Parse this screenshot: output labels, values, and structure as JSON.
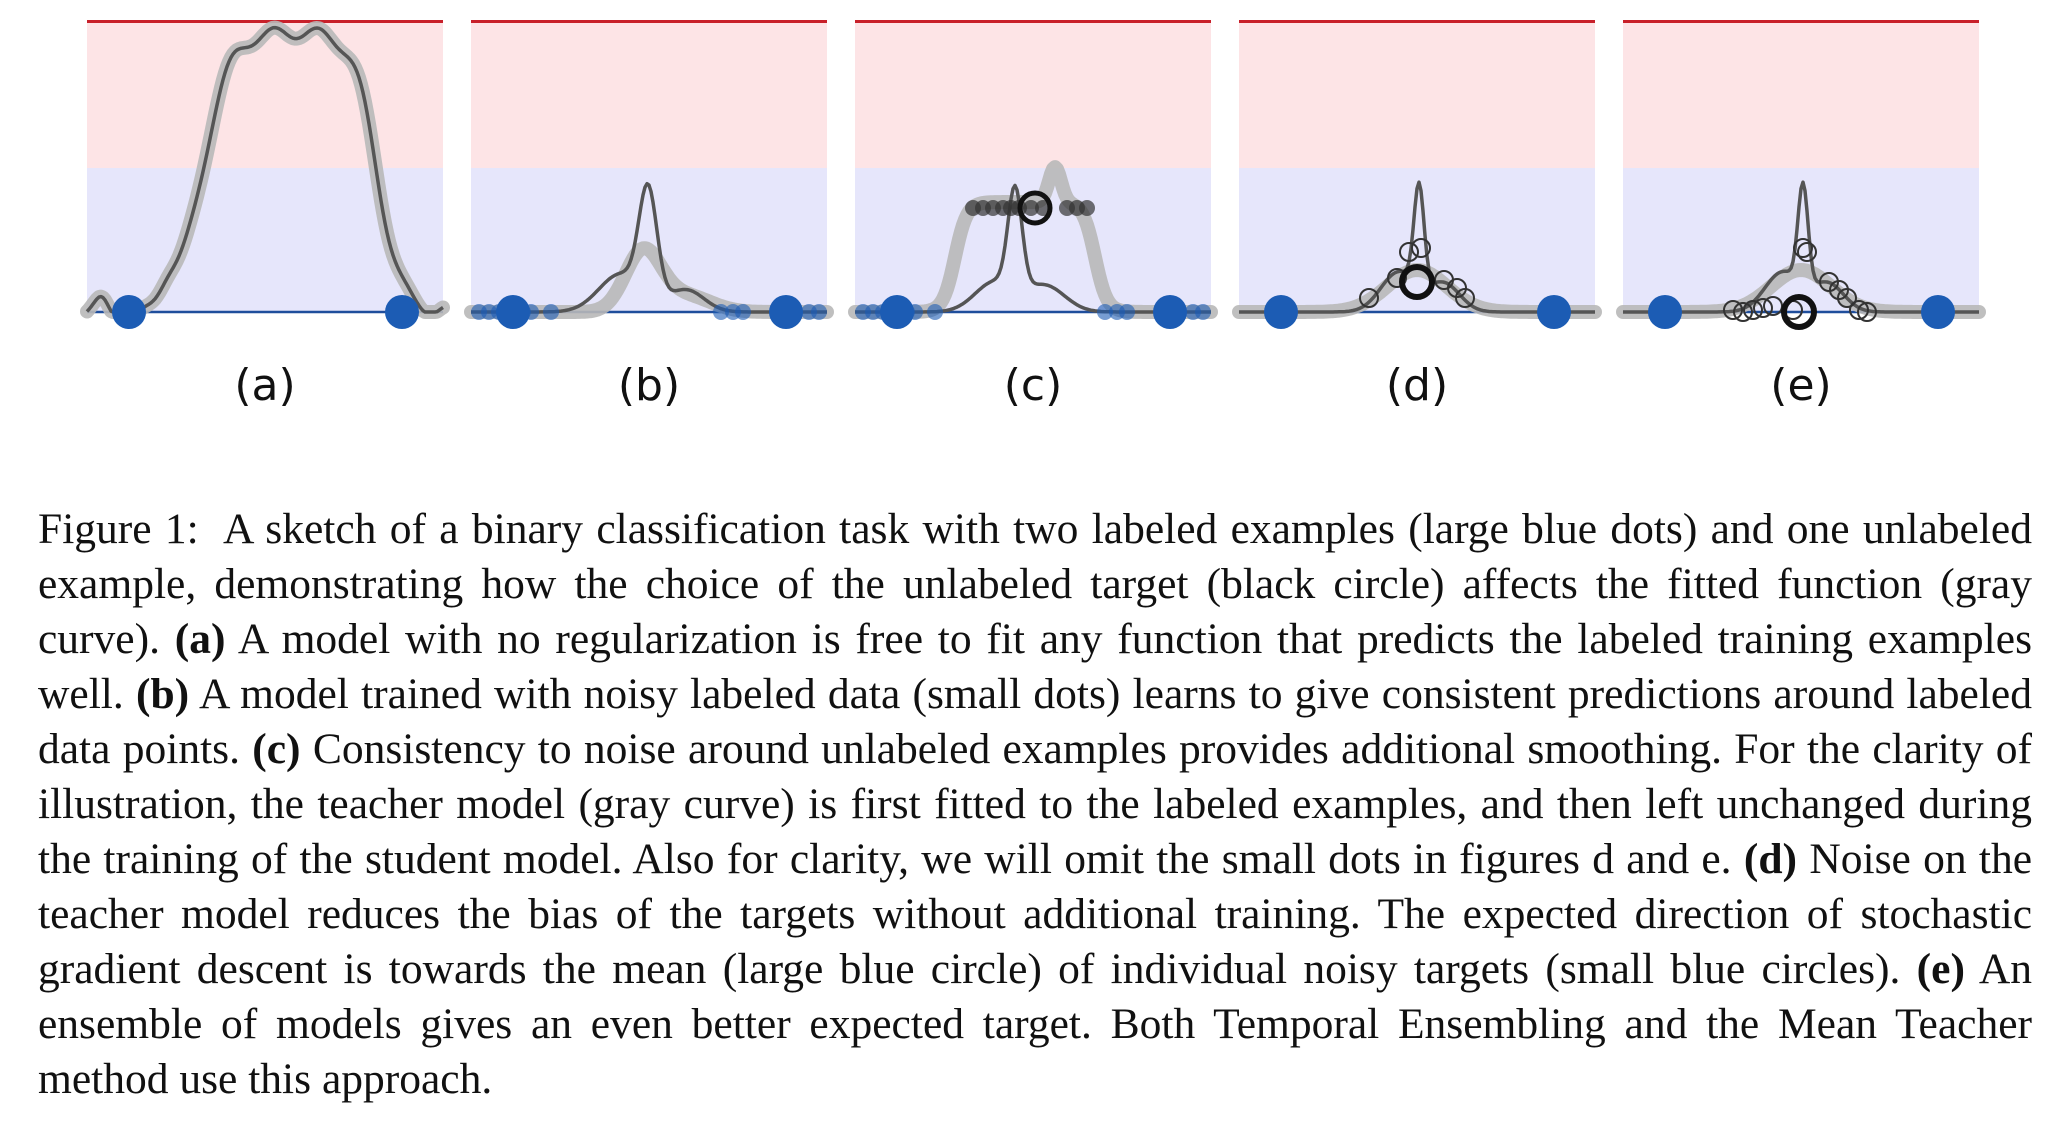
{
  "figure": {
    "panels": [
      {
        "id": "a",
        "label": "(a)",
        "curve": "wide-bump",
        "small_dots": false,
        "noisy_targets": false
      },
      {
        "id": "b",
        "label": "(b)",
        "curve": "small-peak",
        "small_dots": true,
        "noisy_targets": false
      },
      {
        "id": "c",
        "label": "(c)",
        "curve": "peak-with-smooth-plateau",
        "small_dots": true,
        "noisy_targets": "horizontal"
      },
      {
        "id": "d",
        "label": "(d)",
        "curve": "peak",
        "small_dots": false,
        "noisy_targets": "scattered"
      },
      {
        "id": "e",
        "label": "(e)",
        "curve": "peak",
        "small_dots": false,
        "noisy_targets": "clustered"
      }
    ],
    "colors": {
      "upper_region": "#fde4e6",
      "lower_region": "#e6e6fb",
      "top_line": "#c8202a",
      "baseline": "#1f4e9c",
      "labeled_dot": "#1c5cb4",
      "curve": "#555555",
      "curve_halo": "#b8b8b8",
      "target_circle": "#111111"
    }
  },
  "caption": {
    "figure_label": "Figure 1:",
    "intro": "A sketch of a binary classification task with two labeled examples (large blue dots) and one unlabeled example, demonstrating how the choice of the unlabeled target (black circle) affects the fitted function (gray curve).",
    "a_key": "(a)",
    "a_text": "A model with no regularization is free to fit any function that predicts the labeled training examples well.",
    "b_key": "(b)",
    "b_text": "A model trained with noisy labeled data (small dots) learns to give consistent predictions around labeled data points.",
    "c_key": "(c)",
    "c_text": "Consistency to noise around unlabeled examples provides additional smoothing. For the clarity of illustration, the teacher model (gray curve) is first fitted to the labeled examples, and then left unchanged during the training of the student model. Also for clarity, we will omit the small dots in figures d and e.",
    "d_key": "(d)",
    "d_text": "Noise on the teacher model reduces the bias of the targets without additional training. The expected direction of stochastic gradient descent is towards the mean (large blue circle) of individual noisy targets (small blue circles).",
    "e_key": "(e)",
    "e_text": "An ensemble of models gives an even better expected target. Both Temporal Ensembling and the Mean Teacher method use this approach."
  }
}
